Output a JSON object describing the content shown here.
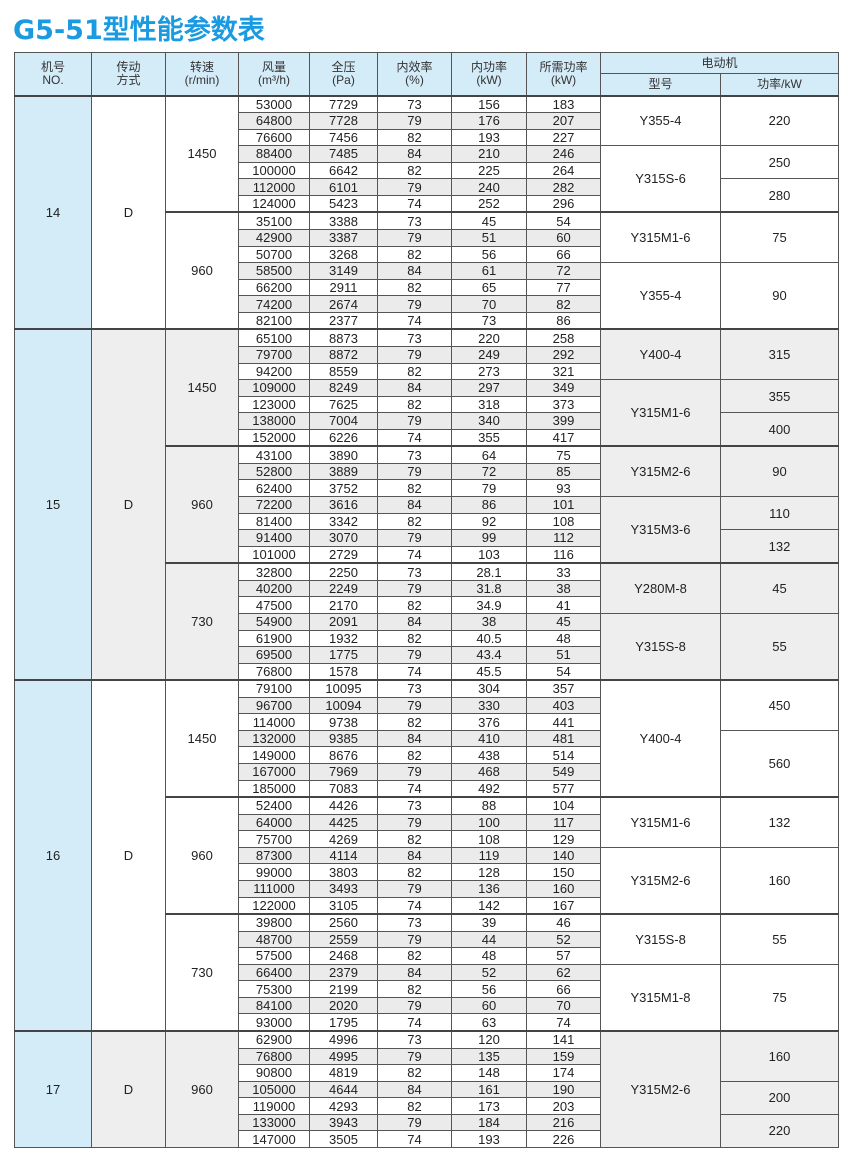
{
  "title": "G5-51型性能参数表",
  "colors": {
    "title": "#1a9ae0",
    "header_bg": "#d4ebf8",
    "row_shade": "#ebebeb"
  },
  "headers": {
    "no": [
      "机号",
      "NO."
    ],
    "drive": [
      "传动",
      "方式"
    ],
    "speed": [
      "转速",
      "(r/min)"
    ],
    "flow": [
      "风量",
      "(m³/h)"
    ],
    "pressure": [
      "全压",
      "(Pa)"
    ],
    "efficiency": [
      "内效率",
      "(%)"
    ],
    "internal_power": [
      "内功率",
      "(kW)"
    ],
    "required_power": [
      "所需功率",
      "(kW)"
    ],
    "motor": "电动机",
    "motor_model": "型号",
    "motor_power": "功率/kW"
  },
  "groups": [
    {
      "no": "14",
      "drive": "D",
      "speeds": [
        {
          "rpm": "1450",
          "rows": [
            [
              "53000",
              "7729",
              "73",
              "156",
              "183"
            ],
            [
              "64800",
              "7728",
              "79",
              "176",
              "207"
            ],
            [
              "76600",
              "7456",
              "82",
              "193",
              "227"
            ],
            [
              "88400",
              "7485",
              "84",
              "210",
              "246"
            ],
            [
              "100000",
              "6642",
              "82",
              "225",
              "264"
            ],
            [
              "112000",
              "6101",
              "79",
              "240",
              "282"
            ],
            [
              "124000",
              "5423",
              "74",
              "252",
              "296"
            ]
          ],
          "motors": [
            {
              "model": "Y355-4",
              "span": 3,
              "powers": [
                {
                  "kw": "220",
                  "span": 3
                }
              ]
            },
            {
              "model": "Y315S-6",
              "span": 4,
              "powers": [
                {
                  "kw": "250",
                  "span": 2
                },
                {
                  "kw": "280",
                  "span": 2
                }
              ]
            }
          ]
        },
        {
          "rpm": "960",
          "rows": [
            [
              "35100",
              "3388",
              "73",
              "45",
              "54"
            ],
            [
              "42900",
              "3387",
              "79",
              "51",
              "60"
            ],
            [
              "50700",
              "3268",
              "82",
              "56",
              "66"
            ],
            [
              "58500",
              "3149",
              "84",
              "61",
              "72"
            ],
            [
              "66200",
              "2911",
              "82",
              "65",
              "77"
            ],
            [
              "74200",
              "2674",
              "79",
              "70",
              "82"
            ],
            [
              "82100",
              "2377",
              "74",
              "73",
              "86"
            ]
          ],
          "motors": [
            {
              "model": "Y315M1-6",
              "span": 3,
              "powers": [
                {
                  "kw": "75",
                  "span": 3
                }
              ]
            },
            {
              "model": "Y355-4",
              "span": 4,
              "powers": [
                {
                  "kw": "90",
                  "span": 4
                }
              ]
            }
          ]
        }
      ]
    },
    {
      "no": "15",
      "drive": "D",
      "speeds": [
        {
          "rpm": "1450",
          "rows": [
            [
              "65100",
              "8873",
              "73",
              "220",
              "258"
            ],
            [
              "79700",
              "8872",
              "79",
              "249",
              "292"
            ],
            [
              "94200",
              "8559",
              "82",
              "273",
              "321"
            ],
            [
              "109000",
              "8249",
              "84",
              "297",
              "349"
            ],
            [
              "123000",
              "7625",
              "82",
              "318",
              "373"
            ],
            [
              "138000",
              "7004",
              "79",
              "340",
              "399"
            ],
            [
              "152000",
              "6226",
              "74",
              "355",
              "417"
            ]
          ],
          "motors": [
            {
              "model": "Y400-4",
              "span": 3,
              "powers": [
                {
                  "kw": "315",
                  "span": 3
                }
              ]
            },
            {
              "model": "Y315M1-6",
              "span": 4,
              "powers": [
                {
                  "kw": "355",
                  "span": 2
                },
                {
                  "kw": "400",
                  "span": 2
                }
              ]
            }
          ]
        },
        {
          "rpm": "960",
          "rows": [
            [
              "43100",
              "3890",
              "73",
              "64",
              "75"
            ],
            [
              "52800",
              "3889",
              "79",
              "72",
              "85"
            ],
            [
              "62400",
              "3752",
              "82",
              "79",
              "93"
            ],
            [
              "72200",
              "3616",
              "84",
              "86",
              "101"
            ],
            [
              "81400",
              "3342",
              "82",
              "92",
              "108"
            ],
            [
              "91400",
              "3070",
              "79",
              "99",
              "112"
            ],
            [
              "101000",
              "2729",
              "74",
              "103",
              "116"
            ]
          ],
          "motors": [
            {
              "model": "Y315M2-6",
              "span": 3,
              "powers": [
                {
                  "kw": "90",
                  "span": 3
                }
              ]
            },
            {
              "model": "Y315M3-6",
              "span": 4,
              "powers": [
                {
                  "kw": "110",
                  "span": 2
                },
                {
                  "kw": "132",
                  "span": 2
                }
              ]
            }
          ]
        },
        {
          "rpm": "730",
          "rows": [
            [
              "32800",
              "2250",
              "73",
              "28.1",
              "33"
            ],
            [
              "40200",
              "2249",
              "79",
              "31.8",
              "38"
            ],
            [
              "47500",
              "2170",
              "82",
              "34.9",
              "41"
            ],
            [
              "54900",
              "2091",
              "84",
              "38",
              "45"
            ],
            [
              "61900",
              "1932",
              "82",
              "40.5",
              "48"
            ],
            [
              "69500",
              "1775",
              "79",
              "43.4",
              "51"
            ],
            [
              "76800",
              "1578",
              "74",
              "45.5",
              "54"
            ]
          ],
          "motors": [
            {
              "model": "Y280M-8",
              "span": 3,
              "powers": [
                {
                  "kw": "45",
                  "span": 3
                }
              ]
            },
            {
              "model": "Y315S-8",
              "span": 4,
              "powers": [
                {
                  "kw": "55",
                  "span": 4
                }
              ]
            }
          ]
        }
      ]
    },
    {
      "no": "16",
      "drive": "D",
      "speeds": [
        {
          "rpm": "1450",
          "rows": [
            [
              "79100",
              "10095",
              "73",
              "304",
              "357"
            ],
            [
              "96700",
              "10094",
              "79",
              "330",
              "403"
            ],
            [
              "114000",
              "9738",
              "82",
              "376",
              "441"
            ],
            [
              "132000",
              "9385",
              "84",
              "410",
              "481"
            ],
            [
              "149000",
              "8676",
              "82",
              "438",
              "514"
            ],
            [
              "167000",
              "7969",
              "79",
              "468",
              "549"
            ],
            [
              "185000",
              "7083",
              "74",
              "492",
              "577"
            ]
          ],
          "motors": [
            {
              "model": "Y400-4",
              "span": 7,
              "powers": [
                {
                  "kw": "450",
                  "span": 3
                },
                {
                  "kw": "560",
                  "span": 4
                }
              ]
            }
          ]
        },
        {
          "rpm": "960",
          "rows": [
            [
              "52400",
              "4426",
              "73",
              "88",
              "104"
            ],
            [
              "64000",
              "4425",
              "79",
              "100",
              "117"
            ],
            [
              "75700",
              "4269",
              "82",
              "108",
              "129"
            ],
            [
              "87300",
              "4114",
              "84",
              "119",
              "140"
            ],
            [
              "99000",
              "3803",
              "82",
              "128",
              "150"
            ],
            [
              "111000",
              "3493",
              "79",
              "136",
              "160"
            ],
            [
              "122000",
              "3105",
              "74",
              "142",
              "167"
            ]
          ],
          "motors": [
            {
              "model": "Y315M1-6",
              "span": 3,
              "powers": [
                {
                  "kw": "132",
                  "span": 3
                }
              ]
            },
            {
              "model": "Y315M2-6",
              "span": 4,
              "powers": [
                {
                  "kw": "160",
                  "span": 4
                }
              ]
            }
          ]
        },
        {
          "rpm": "730",
          "rows": [
            [
              "39800",
              "2560",
              "73",
              "39",
              "46"
            ],
            [
              "48700",
              "2559",
              "79",
              "44",
              "52"
            ],
            [
              "57500",
              "2468",
              "82",
              "48",
              "57"
            ],
            [
              "66400",
              "2379",
              "84",
              "52",
              "62"
            ],
            [
              "75300",
              "2199",
              "82",
              "56",
              "66"
            ],
            [
              "84100",
              "2020",
              "79",
              "60",
              "70"
            ],
            [
              "93000",
              "1795",
              "74",
              "63",
              "74"
            ]
          ],
          "motors": [
            {
              "model": "Y315S-8",
              "span": 3,
              "powers": [
                {
                  "kw": "55",
                  "span": 3
                }
              ]
            },
            {
              "model": "Y315M1-8",
              "span": 4,
              "powers": [
                {
                  "kw": "75",
                  "span": 4
                }
              ]
            }
          ]
        }
      ]
    },
    {
      "no": "17",
      "drive": "D",
      "speeds": [
        {
          "rpm": "960",
          "rows": [
            [
              "62900",
              "4996",
              "73",
              "120",
              "141"
            ],
            [
              "76800",
              "4995",
              "79",
              "135",
              "159"
            ],
            [
              "90800",
              "4819",
              "82",
              "148",
              "174"
            ],
            [
              "105000",
              "4644",
              "84",
              "161",
              "190"
            ],
            [
              "119000",
              "4293",
              "82",
              "173",
              "203"
            ],
            [
              "133000",
              "3943",
              "79",
              "184",
              "216"
            ],
            [
              "147000",
              "3505",
              "74",
              "193",
              "226"
            ]
          ],
          "motors": [
            {
              "model": "Y315M2-6",
              "span": 7,
              "powers": [
                {
                  "kw": "160",
                  "span": 3
                },
                {
                  "kw": "200",
                  "span": 2
                },
                {
                  "kw": "220",
                  "span": 2
                }
              ]
            }
          ]
        }
      ]
    }
  ]
}
